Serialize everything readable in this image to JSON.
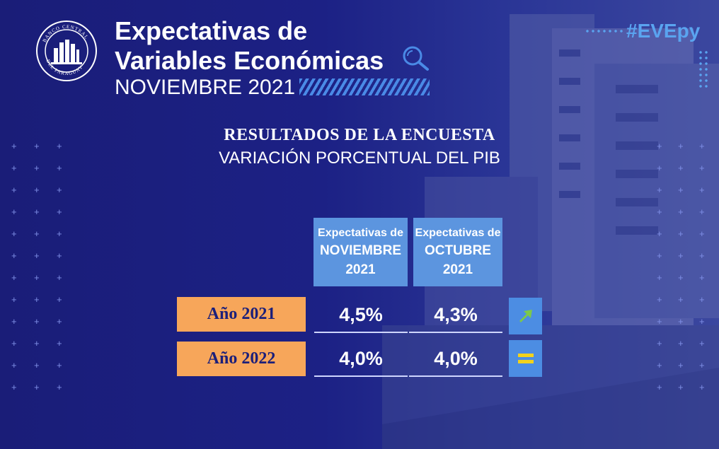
{
  "header": {
    "logo_text": "BANCO CENTRAL DEL PARAGUAY",
    "title_line1": "Expectativas de",
    "title_line2": "Variables Económicas",
    "subtitle": "NOVIEMBRE 2021",
    "hashtag": "#EVEpy"
  },
  "section": {
    "title": "RESULTADOS DE LA ENCUESTA",
    "subtitle": "VARIACIÓN PORCENTUAL DEL PIB"
  },
  "table": {
    "columns": [
      {
        "line1": "Expectativas de",
        "line2": "NOVIEMBRE",
        "line3": "2021"
      },
      {
        "line1": "Expectativas de",
        "line2": "OCTUBRE",
        "line3": "2021"
      }
    ],
    "rows": [
      {
        "label": "Año 2021",
        "values": [
          "4,5%",
          "4,3%"
        ],
        "trend_icon": "arrow-up-right-icon"
      },
      {
        "label": "Año 2022",
        "values": [
          "4,0%",
          "4,0%"
        ],
        "trend_icon": "equal-icon"
      }
    ]
  },
  "colors": {
    "background": "#1b1f7a",
    "header_blue": "#5c95df",
    "row_orange": "#f7a65a",
    "hashtag_blue": "#5aa4f0",
    "arrow_green": "#7cc84a",
    "equal_yellow": "#f2d21b"
  }
}
